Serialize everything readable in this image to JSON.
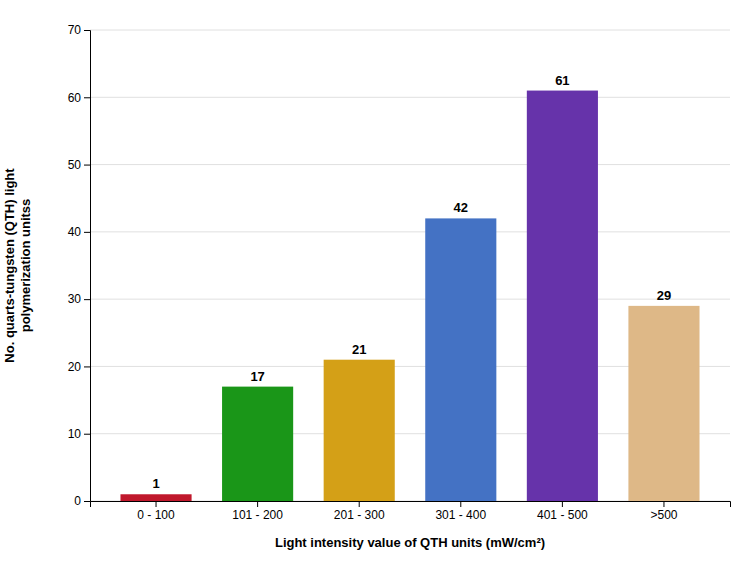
{
  "chart_data": {
    "type": "bar",
    "categories": [
      "0 - 100",
      "101 - 200",
      "201 - 300",
      "301 - 400",
      "401 - 500",
      ">500"
    ],
    "values": [
      1,
      17,
      21,
      42,
      61,
      29
    ],
    "colors": [
      "#c0182c",
      "#1a9618",
      "#d4a017",
      "#4472c4",
      "#6633aa",
      "#deb887"
    ],
    "xlabel": "Light intensity value of QTH units (mW/cm²)",
    "ylabel": "No. quarts-tungsten (QTH) light\npolymerization unitss",
    "ylim": [
      0,
      70
    ],
    "yticks": [
      0,
      10,
      20,
      30,
      40,
      50,
      60,
      70
    ],
    "grid": true,
    "data_labels": true
  }
}
